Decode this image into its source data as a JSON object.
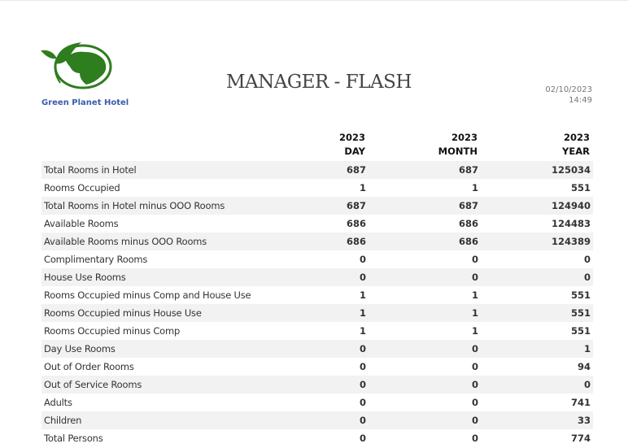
{
  "header": {
    "hotel_name": "Green Planet Hotel",
    "title": "MANAGER - FLASH",
    "date": "02/10/2023",
    "time": "14:49",
    "logo_icon": "globe-leaf-logo",
    "brand_color": "#2e7d1e"
  },
  "columns": [
    {
      "year": "2023",
      "period": "DAY"
    },
    {
      "year": "2023",
      "period": "MONTH"
    },
    {
      "year": "2023",
      "period": "YEAR"
    }
  ],
  "rows": [
    {
      "label": "Total Rooms in Hotel",
      "day": "687",
      "month": "687",
      "year": "125034"
    },
    {
      "label": "Rooms Occupied",
      "day": "1",
      "month": "1",
      "year": "551"
    },
    {
      "label": "Total Rooms in Hotel minus OOO Rooms",
      "day": "687",
      "month": "687",
      "year": "124940"
    },
    {
      "label": "Available Rooms",
      "day": "686",
      "month": "686",
      "year": "124483"
    },
    {
      "label": "Available Rooms minus OOO Rooms",
      "day": "686",
      "month": "686",
      "year": "124389"
    },
    {
      "label": "Complimentary Rooms",
      "day": "0",
      "month": "0",
      "year": "0"
    },
    {
      "label": "House Use Rooms",
      "day": "0",
      "month": "0",
      "year": "0"
    },
    {
      "label": "Rooms Occupied minus Comp and House Use",
      "day": "1",
      "month": "1",
      "year": "551"
    },
    {
      "label": "Rooms Occupied minus House Use",
      "day": "1",
      "month": "1",
      "year": "551"
    },
    {
      "label": "Rooms Occupied minus Comp",
      "day": "1",
      "month": "1",
      "year": "551"
    },
    {
      "label": "Day Use Rooms",
      "day": "0",
      "month": "0",
      "year": "1"
    },
    {
      "label": "Out of Order Rooms",
      "day": "0",
      "month": "0",
      "year": "94"
    },
    {
      "label": "Out of Service Rooms",
      "day": "0",
      "month": "0",
      "year": "0"
    },
    {
      "label": "Adults",
      "day": "0",
      "month": "0",
      "year": "741"
    },
    {
      "label": "Children",
      "day": "0",
      "month": "0",
      "year": "33"
    },
    {
      "label": "Total Persons",
      "day": "0",
      "month": "0",
      "year": "774"
    }
  ]
}
